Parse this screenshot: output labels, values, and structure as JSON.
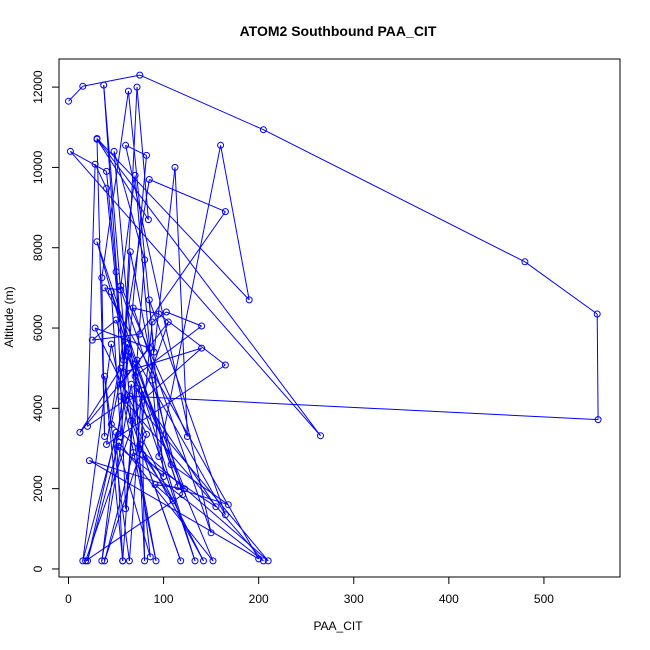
{
  "chart_data": {
    "type": "line",
    "title": "ATOM2 Southbound PAA_CIT",
    "xlabel": "PAA_CIT",
    "ylabel": "Altitude (m)",
    "xlim": [
      -10,
      580
    ],
    "ylim": [
      -200,
      12700
    ],
    "x_ticks": [
      0,
      100,
      200,
      300,
      400,
      500
    ],
    "y_ticks": [
      0,
      2000,
      4000,
      6000,
      8000,
      10000,
      12000
    ],
    "grid": false,
    "series_color": "#0000ff",
    "series": [
      {
        "markers": "open-circle",
        "points": [
          [
            0,
            11650
          ],
          [
            15,
            12020
          ],
          [
            75,
            12300
          ],
          [
            205,
            10940
          ],
          [
            480,
            7650
          ],
          [
            556,
            6350
          ],
          [
            557,
            3720
          ],
          [
            65,
            4300
          ],
          [
            20,
            3550
          ],
          [
            28,
            10080
          ],
          [
            40,
            9480
          ],
          [
            58,
            5200
          ],
          [
            72,
            12000
          ],
          [
            84,
            8700
          ],
          [
            30,
            10700
          ],
          [
            38,
            3300
          ],
          [
            35,
            7250
          ],
          [
            63,
            11900
          ],
          [
            90,
            5400
          ],
          [
            112,
            10000
          ],
          [
            125,
            3300
          ],
          [
            55,
            7050
          ],
          [
            70,
            9800
          ],
          [
            95,
            2800
          ],
          [
            160,
            10550
          ],
          [
            190,
            6700
          ],
          [
            30,
            10720
          ],
          [
            265,
            3320
          ],
          [
            2,
            10400
          ],
          [
            40,
            9900
          ],
          [
            50,
            7400
          ],
          [
            60,
            1500
          ],
          [
            80,
            7700
          ],
          [
            48,
            10400
          ],
          [
            75,
            3000
          ],
          [
            88,
            6150
          ],
          [
            103,
            6400
          ],
          [
            140,
            6050
          ],
          [
            70,
            4800
          ],
          [
            30,
            8150
          ],
          [
            115,
            2050
          ],
          [
            45,
            6900
          ],
          [
            55,
            3300
          ],
          [
            82,
            10300
          ],
          [
            60,
            10550
          ],
          [
            150,
            900
          ],
          [
            68,
            6500
          ],
          [
            95,
            6350
          ],
          [
            165,
            5080
          ],
          [
            40,
            3100
          ],
          [
            85,
            9700
          ],
          [
            165,
            8900
          ],
          [
            75,
            5850
          ],
          [
            25,
            5700
          ],
          [
            50,
            6200
          ],
          [
            78,
            4200
          ],
          [
            140,
            5500
          ],
          [
            58,
            4900
          ],
          [
            65,
            7900
          ],
          [
            108,
            2600
          ],
          [
            168,
            1600
          ],
          [
            22,
            2700
          ],
          [
            200,
            250
          ],
          [
            38,
            7000
          ],
          [
            55,
            6950
          ],
          [
            88,
            4700
          ],
          [
            120,
            1850
          ],
          [
            18,
            200
          ],
          [
            105,
            6150
          ],
          [
            55,
            4600
          ],
          [
            210,
            200
          ],
          [
            45,
            3600
          ],
          [
            62,
            5600
          ],
          [
            133,
            200
          ],
          [
            72,
            4500
          ],
          [
            155,
            1550
          ],
          [
            68,
            2900
          ],
          [
            38,
            200
          ],
          [
            82,
            3350
          ],
          [
            28,
            6000
          ],
          [
            85,
            5500
          ],
          [
            12,
            3400
          ],
          [
            55,
            5000
          ],
          [
            92,
            200
          ],
          [
            45,
            5600
          ],
          [
            15,
            200
          ],
          [
            60,
            4200
          ],
          [
            37,
            12050
          ],
          [
            66,
            3700
          ],
          [
            118,
            200
          ],
          [
            75,
            3100
          ],
          [
            142,
            200
          ],
          [
            55,
            4300
          ],
          [
            205,
            200
          ],
          [
            52,
            3050
          ],
          [
            86,
            300
          ],
          [
            66,
            4600
          ],
          [
            35,
            200
          ],
          [
            62,
            5300
          ],
          [
            152,
            200
          ],
          [
            53,
            3150
          ],
          [
            20,
            200
          ],
          [
            50,
            3400
          ],
          [
            57,
            200
          ],
          [
            38,
            4800
          ],
          [
            64,
            200
          ],
          [
            77,
            4450
          ],
          [
            80,
            200
          ],
          [
            70,
            5100
          ],
          [
            122,
            2000
          ],
          [
            91,
            2100
          ],
          [
            110,
            1700
          ],
          [
            78,
            2850
          ],
          [
            100,
            2300
          ],
          [
            85,
            6700
          ],
          [
            165,
            1350
          ],
          [
            72,
            5200
          ],
          [
            57,
            200
          ]
        ]
      }
    ]
  }
}
